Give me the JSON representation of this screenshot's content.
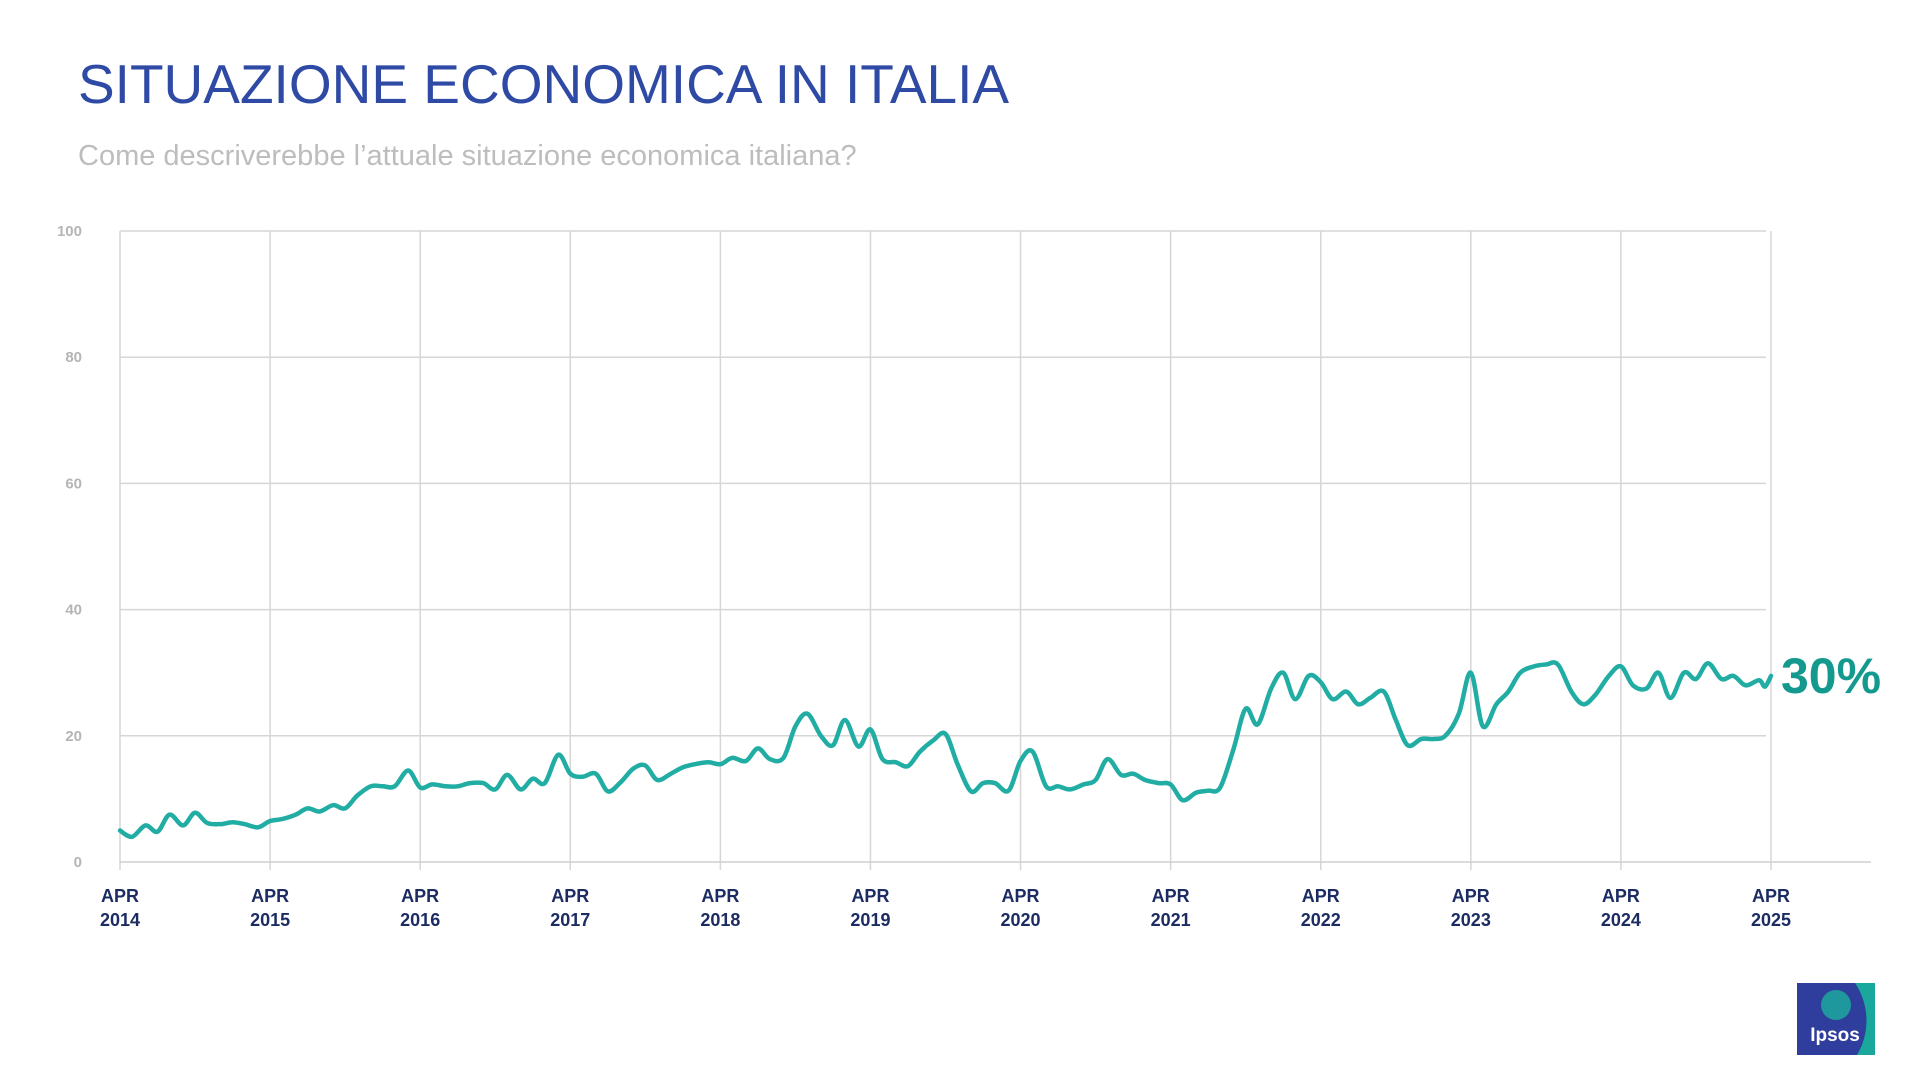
{
  "header": {
    "title": "SITUAZIONE ECONOMICA IN ITALIA",
    "subtitle": "Come descriverebbe l’attuale situazione economica italiana?"
  },
  "logo": {
    "text": "Ipsos",
    "color": "#2f3d9c",
    "accent": "#1ba89c"
  },
  "chart_data": {
    "type": "line",
    "title": "SITUAZIONE ECONOMICA IN ITALIA",
    "subtitle": "Come descriverebbe l’attuale situazione economica italiana?",
    "ylim": [
      0,
      100
    ],
    "yticks": [
      0,
      20,
      40,
      60,
      80,
      100
    ],
    "xlim": [
      2014.25,
      2025.25
    ],
    "xticks": [
      {
        "x": 2014.25,
        "label": [
          "APR",
          "2014"
        ]
      },
      {
        "x": 2015.25,
        "label": [
          "APR",
          "2015"
        ]
      },
      {
        "x": 2016.25,
        "label": [
          "APR",
          "2016"
        ]
      },
      {
        "x": 2017.25,
        "label": [
          "APR",
          "2017"
        ]
      },
      {
        "x": 2018.25,
        "label": [
          "APR",
          "2018"
        ]
      },
      {
        "x": 2019.25,
        "label": [
          "APR",
          "2019"
        ]
      },
      {
        "x": 2020.25,
        "label": [
          "APR",
          "2020"
        ]
      },
      {
        "x": 2021.25,
        "label": [
          "APR",
          "2021"
        ]
      },
      {
        "x": 2022.25,
        "label": [
          "APR",
          "2022"
        ]
      },
      {
        "x": 2023.25,
        "label": [
          "APR",
          "2023"
        ]
      },
      {
        "x": 2024.25,
        "label": [
          "APR",
          "2024"
        ]
      },
      {
        "x": 2025.25,
        "label": [
          "APR",
          "2025"
        ]
      }
    ],
    "grid": true,
    "line_color": "#21ada3",
    "end_label": "30%",
    "end_label_color": "#14998f",
    "series": [
      {
        "values": [
          [
            2014.25,
            5.0
          ],
          [
            2014.33,
            4.0
          ],
          [
            2014.42,
            5.8
          ],
          [
            2014.5,
            4.8
          ],
          [
            2014.58,
            7.5
          ],
          [
            2014.67,
            5.8
          ],
          [
            2014.75,
            7.8
          ],
          [
            2014.83,
            6.2
          ],
          [
            2014.92,
            6.0
          ],
          [
            2015.0,
            6.3
          ],
          [
            2015.08,
            6.0
          ],
          [
            2015.17,
            5.5
          ],
          [
            2015.25,
            6.5
          ],
          [
            2015.33,
            6.8
          ],
          [
            2015.42,
            7.5
          ],
          [
            2015.5,
            8.5
          ],
          [
            2015.58,
            8.0
          ],
          [
            2015.67,
            9.0
          ],
          [
            2015.75,
            8.5
          ],
          [
            2015.83,
            10.5
          ],
          [
            2015.92,
            12.0
          ],
          [
            2016.0,
            12.0
          ],
          [
            2016.08,
            12.0
          ],
          [
            2016.17,
            14.5
          ],
          [
            2016.25,
            11.8
          ],
          [
            2016.33,
            12.3
          ],
          [
            2016.42,
            12.0
          ],
          [
            2016.5,
            12.0
          ],
          [
            2016.58,
            12.5
          ],
          [
            2016.67,
            12.5
          ],
          [
            2016.75,
            11.5
          ],
          [
            2016.83,
            13.8
          ],
          [
            2016.92,
            11.5
          ],
          [
            2017.0,
            13.2
          ],
          [
            2017.08,
            12.5
          ],
          [
            2017.17,
            17.0
          ],
          [
            2017.25,
            14.0
          ],
          [
            2017.33,
            13.5
          ],
          [
            2017.42,
            14.0
          ],
          [
            2017.5,
            11.2
          ],
          [
            2017.58,
            12.5
          ],
          [
            2017.67,
            14.8
          ],
          [
            2017.75,
            15.3
          ],
          [
            2017.83,
            13.0
          ],
          [
            2017.92,
            14.0
          ],
          [
            2018.0,
            15.0
          ],
          [
            2018.08,
            15.5
          ],
          [
            2018.17,
            15.8
          ],
          [
            2018.25,
            15.5
          ],
          [
            2018.33,
            16.5
          ],
          [
            2018.42,
            16.0
          ],
          [
            2018.5,
            18.0
          ],
          [
            2018.58,
            16.3
          ],
          [
            2018.67,
            16.5
          ],
          [
            2018.75,
            21.5
          ],
          [
            2018.83,
            23.5
          ],
          [
            2018.92,
            20.0
          ],
          [
            2019.0,
            18.5
          ],
          [
            2019.08,
            22.5
          ],
          [
            2019.17,
            18.3
          ],
          [
            2019.25,
            21.0
          ],
          [
            2019.33,
            16.3
          ],
          [
            2019.42,
            15.8
          ],
          [
            2019.5,
            15.2
          ],
          [
            2019.58,
            17.5
          ],
          [
            2019.67,
            19.3
          ],
          [
            2019.75,
            20.3
          ],
          [
            2019.83,
            15.5
          ],
          [
            2019.92,
            11.2
          ],
          [
            2020.0,
            12.5
          ],
          [
            2020.08,
            12.5
          ],
          [
            2020.17,
            11.3
          ],
          [
            2020.25,
            16.0
          ],
          [
            2020.33,
            17.5
          ],
          [
            2020.42,
            12.0
          ],
          [
            2020.5,
            12.0
          ],
          [
            2020.58,
            11.5
          ],
          [
            2020.67,
            12.3
          ],
          [
            2020.75,
            13.0
          ],
          [
            2020.83,
            16.3
          ],
          [
            2020.92,
            13.8
          ],
          [
            2021.0,
            14.0
          ],
          [
            2021.08,
            13.0
          ],
          [
            2021.17,
            12.5
          ],
          [
            2021.25,
            12.3
          ],
          [
            2021.33,
            9.8
          ],
          [
            2021.42,
            11.0
          ],
          [
            2021.5,
            11.3
          ],
          [
            2021.58,
            11.8
          ],
          [
            2021.67,
            18.0
          ],
          [
            2021.75,
            24.3
          ],
          [
            2021.83,
            21.8
          ],
          [
            2021.92,
            27.5
          ],
          [
            2022.0,
            30.0
          ],
          [
            2022.08,
            25.8
          ],
          [
            2022.17,
            29.5
          ],
          [
            2022.25,
            28.5
          ],
          [
            2022.33,
            25.8
          ],
          [
            2022.42,
            27.0
          ],
          [
            2022.5,
            25.0
          ],
          [
            2022.58,
            26.0
          ],
          [
            2022.67,
            27.0
          ],
          [
            2022.75,
            22.5
          ],
          [
            2022.83,
            18.5
          ],
          [
            2022.92,
            19.5
          ],
          [
            2023.0,
            19.5
          ],
          [
            2023.08,
            20.0
          ],
          [
            2023.17,
            23.5
          ],
          [
            2023.25,
            30.0
          ],
          [
            2023.33,
            21.5
          ],
          [
            2023.42,
            25.0
          ],
          [
            2023.5,
            27.0
          ],
          [
            2023.58,
            30.0
          ],
          [
            2023.67,
            31.0
          ],
          [
            2023.75,
            31.3
          ],
          [
            2023.83,
            31.3
          ],
          [
            2023.92,
            27.0
          ],
          [
            2024.0,
            25.0
          ],
          [
            2024.08,
            26.5
          ],
          [
            2024.17,
            29.5
          ],
          [
            2024.25,
            31.0
          ],
          [
            2024.33,
            28.0
          ],
          [
            2024.42,
            27.5
          ],
          [
            2024.5,
            30.0
          ],
          [
            2024.58,
            26.0
          ],
          [
            2024.67,
            30.0
          ],
          [
            2024.75,
            29.0
          ],
          [
            2024.83,
            31.5
          ],
          [
            2024.92,
            29.0
          ],
          [
            2025.0,
            29.5
          ],
          [
            2025.08,
            28.0
          ],
          [
            2025.17,
            28.8
          ],
          [
            2025.21,
            27.8
          ],
          [
            2025.25,
            29.5
          ]
        ]
      }
    ]
  }
}
